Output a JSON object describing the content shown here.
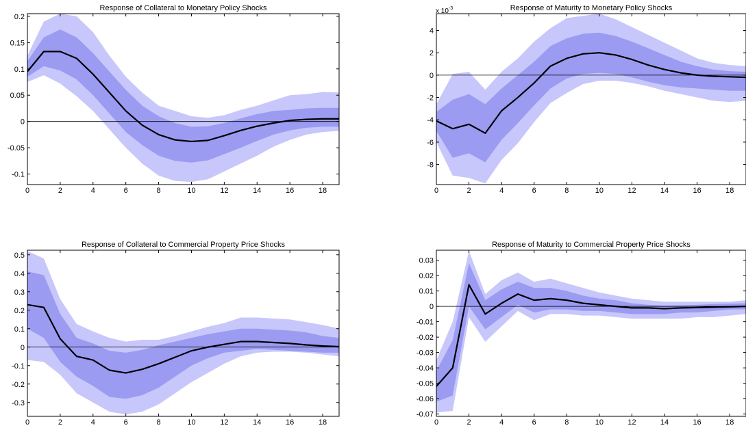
{
  "chart_data": [
    {
      "type": "line",
      "title": "Response of Collateral to Monetary Policy Shocks",
      "xlabel": "",
      "ylabel": "",
      "xlim": [
        0,
        19
      ],
      "ylim": [
        -0.12,
        0.205
      ],
      "x_ticks": [
        "0",
        "2",
        "4",
        "6",
        "8",
        "10",
        "12",
        "14",
        "16",
        "18"
      ],
      "y_ticks": [
        "0.2",
        "0.15",
        "0.1",
        "0.05",
        "0",
        "-0.05",
        "-0.1"
      ],
      "y_tick_values": [
        0.2,
        0.15,
        0.1,
        0.05,
        0,
        -0.05,
        -0.1
      ],
      "exponent": "",
      "x": [
        0,
        1,
        2,
        3,
        4,
        5,
        6,
        7,
        8,
        9,
        10,
        11,
        12,
        13,
        14,
        15,
        16,
        17,
        18,
        19
      ],
      "series": [
        {
          "role": "median",
          "values": [
            0.095,
            0.133,
            0.133,
            0.12,
            0.09,
            0.055,
            0.02,
            -0.007,
            -0.025,
            -0.035,
            -0.038,
            -0.036,
            -0.027,
            -0.017,
            -0.009,
            -0.003,
            0.002,
            0.004,
            0.005,
            0.005
          ]
        },
        {
          "role": "inner_upper",
          "values": [
            0.115,
            0.16,
            0.175,
            0.16,
            0.13,
            0.095,
            0.06,
            0.03,
            0.01,
            -0.003,
            -0.01,
            -0.009,
            -0.003,
            0.006,
            0.014,
            0.02,
            0.022,
            0.025,
            0.026,
            0.026
          ]
        },
        {
          "role": "inner_lower",
          "values": [
            0.085,
            0.105,
            0.097,
            0.08,
            0.05,
            0.015,
            -0.02,
            -0.045,
            -0.065,
            -0.075,
            -0.078,
            -0.074,
            -0.062,
            -0.05,
            -0.037,
            -0.025,
            -0.017,
            -0.012,
            -0.01,
            -0.01
          ]
        },
        {
          "role": "outer_upper",
          "values": [
            0.125,
            0.19,
            0.205,
            0.2,
            0.17,
            0.125,
            0.085,
            0.055,
            0.03,
            0.02,
            0.01,
            0.007,
            0.012,
            0.022,
            0.03,
            0.04,
            0.05,
            0.052,
            0.056,
            0.055
          ]
        },
        {
          "role": "outer_lower",
          "values": [
            0.075,
            0.088,
            0.072,
            0.048,
            0.02,
            -0.015,
            -0.05,
            -0.08,
            -0.103,
            -0.113,
            -0.115,
            -0.11,
            -0.095,
            -0.08,
            -0.065,
            -0.048,
            -0.035,
            -0.025,
            -0.02,
            -0.018
          ]
        }
      ]
    },
    {
      "type": "line",
      "title": "Response of Maturity to Monetary Policy Shocks",
      "xlabel": "",
      "ylabel": "",
      "xlim": [
        0,
        19
      ],
      "ylim": [
        -9.8,
        5.5
      ],
      "x_ticks": [
        "0",
        "2",
        "4",
        "6",
        "8",
        "10",
        "12",
        "14",
        "16",
        "18"
      ],
      "y_ticks": [
        "4",
        "2",
        "0",
        "-2",
        "-4",
        "-6",
        "-8"
      ],
      "y_tick_values": [
        4,
        2,
        0,
        -2,
        -4,
        -6,
        -8
      ],
      "exponent": "x 10",
      "exponent_power": "-3",
      "x": [
        0,
        1,
        2,
        3,
        4,
        5,
        6,
        7,
        8,
        9,
        10,
        11,
        12,
        13,
        14,
        15,
        16,
        17,
        18,
        19
      ],
      "series": [
        {
          "role": "median",
          "values": [
            -4.1,
            -4.8,
            -4.4,
            -5.2,
            -3.2,
            -2.0,
            -0.7,
            0.8,
            1.5,
            1.9,
            2.0,
            1.8,
            1.4,
            0.9,
            0.5,
            0.2,
            0.0,
            -0.1,
            -0.15,
            -0.2
          ]
        },
        {
          "role": "inner_upper",
          "values": [
            -3.3,
            -2.2,
            -1.7,
            -2.6,
            -1.2,
            0.0,
            1.2,
            2.6,
            3.3,
            3.7,
            3.8,
            3.5,
            3.0,
            2.4,
            1.8,
            1.2,
            0.8,
            0.5,
            0.35,
            0.3
          ]
        },
        {
          "role": "inner_lower",
          "values": [
            -5.0,
            -7.4,
            -7.0,
            -7.8,
            -5.8,
            -4.3,
            -2.7,
            -1.2,
            -0.3,
            0.1,
            0.2,
            0.1,
            -0.2,
            -0.6,
            -0.9,
            -1.1,
            -1.2,
            -1.3,
            -1.4,
            -1.4
          ]
        },
        {
          "role": "outer_upper",
          "values": [
            -2.6,
            0.1,
            0.3,
            -1.3,
            0.3,
            1.5,
            3.0,
            4.2,
            5.1,
            5.3,
            5.5,
            5.0,
            4.3,
            3.6,
            2.9,
            2.2,
            1.5,
            1.1,
            0.9,
            0.8
          ]
        },
        {
          "role": "outer_lower",
          "values": [
            -6.0,
            -9.0,
            -9.2,
            -9.7,
            -7.6,
            -6.1,
            -4.2,
            -2.5,
            -1.6,
            -0.8,
            -0.5,
            -0.5,
            -0.7,
            -1.0,
            -1.4,
            -1.7,
            -2.0,
            -2.3,
            -2.4,
            -2.3
          ]
        }
      ]
    },
    {
      "type": "line",
      "title": "Response of Collateral to Commercial Property Price Shocks",
      "xlabel": "",
      "ylabel": "",
      "xlim": [
        0,
        19
      ],
      "ylim": [
        -0.375,
        0.525
      ],
      "x_ticks": [
        "0",
        "2",
        "4",
        "6",
        "8",
        "10",
        "12",
        "14",
        "16",
        "18"
      ],
      "y_ticks": [
        "0.5",
        "0.4",
        "0.3",
        "0.2",
        "0.1",
        "0",
        "-0.1",
        "-0.2",
        "-0.3"
      ],
      "y_tick_values": [
        0.5,
        0.4,
        0.3,
        0.2,
        0.1,
        0,
        -0.1,
        -0.2,
        -0.3
      ],
      "exponent": "",
      "x": [
        0,
        1,
        2,
        3,
        4,
        5,
        6,
        7,
        8,
        9,
        10,
        11,
        12,
        13,
        14,
        15,
        16,
        17,
        18,
        19
      ],
      "series": [
        {
          "role": "median",
          "values": [
            0.23,
            0.215,
            0.045,
            -0.05,
            -0.07,
            -0.125,
            -0.14,
            -0.12,
            -0.09,
            -0.055,
            -0.02,
            0.0,
            0.015,
            0.03,
            0.03,
            0.025,
            0.02,
            0.012,
            0.006,
            0.003
          ]
        },
        {
          "role": "inner_upper",
          "values": [
            0.41,
            0.39,
            0.18,
            0.05,
            0.02,
            -0.02,
            -0.03,
            -0.015,
            0.01,
            0.03,
            0.05,
            0.07,
            0.085,
            0.1,
            0.1,
            0.095,
            0.09,
            0.08,
            0.06,
            0.05
          ]
        },
        {
          "role": "inner_lower",
          "values": [
            0.1,
            0.05,
            -0.08,
            -0.16,
            -0.21,
            -0.27,
            -0.28,
            -0.26,
            -0.22,
            -0.16,
            -0.1,
            -0.06,
            -0.03,
            -0.02,
            -0.01,
            -0.015,
            -0.02,
            -0.025,
            -0.03,
            -0.03
          ]
        },
        {
          "role": "outer_upper",
          "values": [
            0.52,
            0.48,
            0.26,
            0.125,
            0.085,
            0.05,
            0.03,
            0.04,
            0.04,
            0.06,
            0.085,
            0.11,
            0.13,
            0.16,
            0.16,
            0.155,
            0.15,
            0.135,
            0.12,
            0.1
          ]
        },
        {
          "role": "outer_lower",
          "values": [
            -0.07,
            -0.08,
            -0.15,
            -0.25,
            -0.3,
            -0.35,
            -0.365,
            -0.35,
            -0.31,
            -0.25,
            -0.19,
            -0.14,
            -0.09,
            -0.05,
            -0.03,
            -0.025,
            -0.025,
            -0.03,
            -0.04,
            -0.05
          ]
        }
      ]
    },
    {
      "type": "line",
      "title": "Response of Maturity to Commercial Property Price Shocks",
      "xlabel": "",
      "ylabel": "",
      "xlim": [
        0,
        19
      ],
      "ylim": [
        -0.0715,
        0.0365
      ],
      "x_ticks": [
        "0",
        "2",
        "4",
        "6",
        "8",
        "10",
        "12",
        "14",
        "16",
        "18"
      ],
      "y_ticks": [
        "0.03",
        "0.02",
        "0.01",
        "0",
        "-0.01",
        "-0.02",
        "-0.03",
        "-0.04",
        "-0.05",
        "-0.06",
        "-0.07"
      ],
      "y_tick_values": [
        0.03,
        0.02,
        0.01,
        0,
        -0.01,
        -0.02,
        -0.03,
        -0.04,
        -0.05,
        -0.06,
        -0.07
      ],
      "exponent": "",
      "x": [
        0,
        1,
        2,
        3,
        4,
        5,
        6,
        7,
        8,
        9,
        10,
        11,
        12,
        13,
        14,
        15,
        16,
        17,
        18,
        19
      ],
      "series": [
        {
          "role": "median",
          "values": [
            -0.052,
            -0.04,
            0.014,
            -0.005,
            0.002,
            0.008,
            0.004,
            0.005,
            0.004,
            0.002,
            0.001,
            0.0,
            -0.001,
            -0.001,
            -0.0015,
            -0.001,
            -0.0008,
            -0.0005,
            -0.0003,
            0.0
          ]
        },
        {
          "role": "inner_upper",
          "values": [
            -0.042,
            -0.022,
            0.028,
            0.004,
            0.011,
            0.016,
            0.012,
            0.012,
            0.01,
            0.007,
            0.005,
            0.004,
            0.002,
            0.001,
            0.0005,
            0.0008,
            0.001,
            0.0015,
            0.0018,
            0.002
          ]
        },
        {
          "role": "inner_lower",
          "values": [
            -0.062,
            -0.058,
            0.0,
            -0.015,
            -0.007,
            0.001,
            -0.004,
            -0.002,
            -0.002,
            -0.003,
            -0.003,
            -0.004,
            -0.005,
            -0.005,
            -0.005,
            -0.004,
            -0.004,
            -0.003,
            -0.002,
            -0.002
          ]
        },
        {
          "role": "outer_upper",
          "values": [
            -0.035,
            -0.01,
            0.036,
            0.008,
            0.017,
            0.022,
            0.016,
            0.018,
            0.015,
            0.012,
            0.009,
            0.007,
            0.005,
            0.004,
            0.003,
            0.003,
            0.003,
            0.003,
            0.003,
            0.004
          ]
        },
        {
          "role": "outer_lower",
          "values": [
            -0.069,
            -0.068,
            -0.007,
            -0.023,
            -0.013,
            -0.003,
            -0.009,
            -0.005,
            -0.005,
            -0.006,
            -0.006,
            -0.007,
            -0.008,
            -0.008,
            -0.008,
            -0.008,
            -0.007,
            -0.007,
            -0.006,
            -0.005
          ]
        }
      ]
    }
  ],
  "colors": {
    "outer_band": "#c7c7fb",
    "inner_band": "#9b9bf2",
    "median_line": "#000000",
    "zero_line": "#000000",
    "axes": "#000000",
    "background": "#ffffff"
  }
}
